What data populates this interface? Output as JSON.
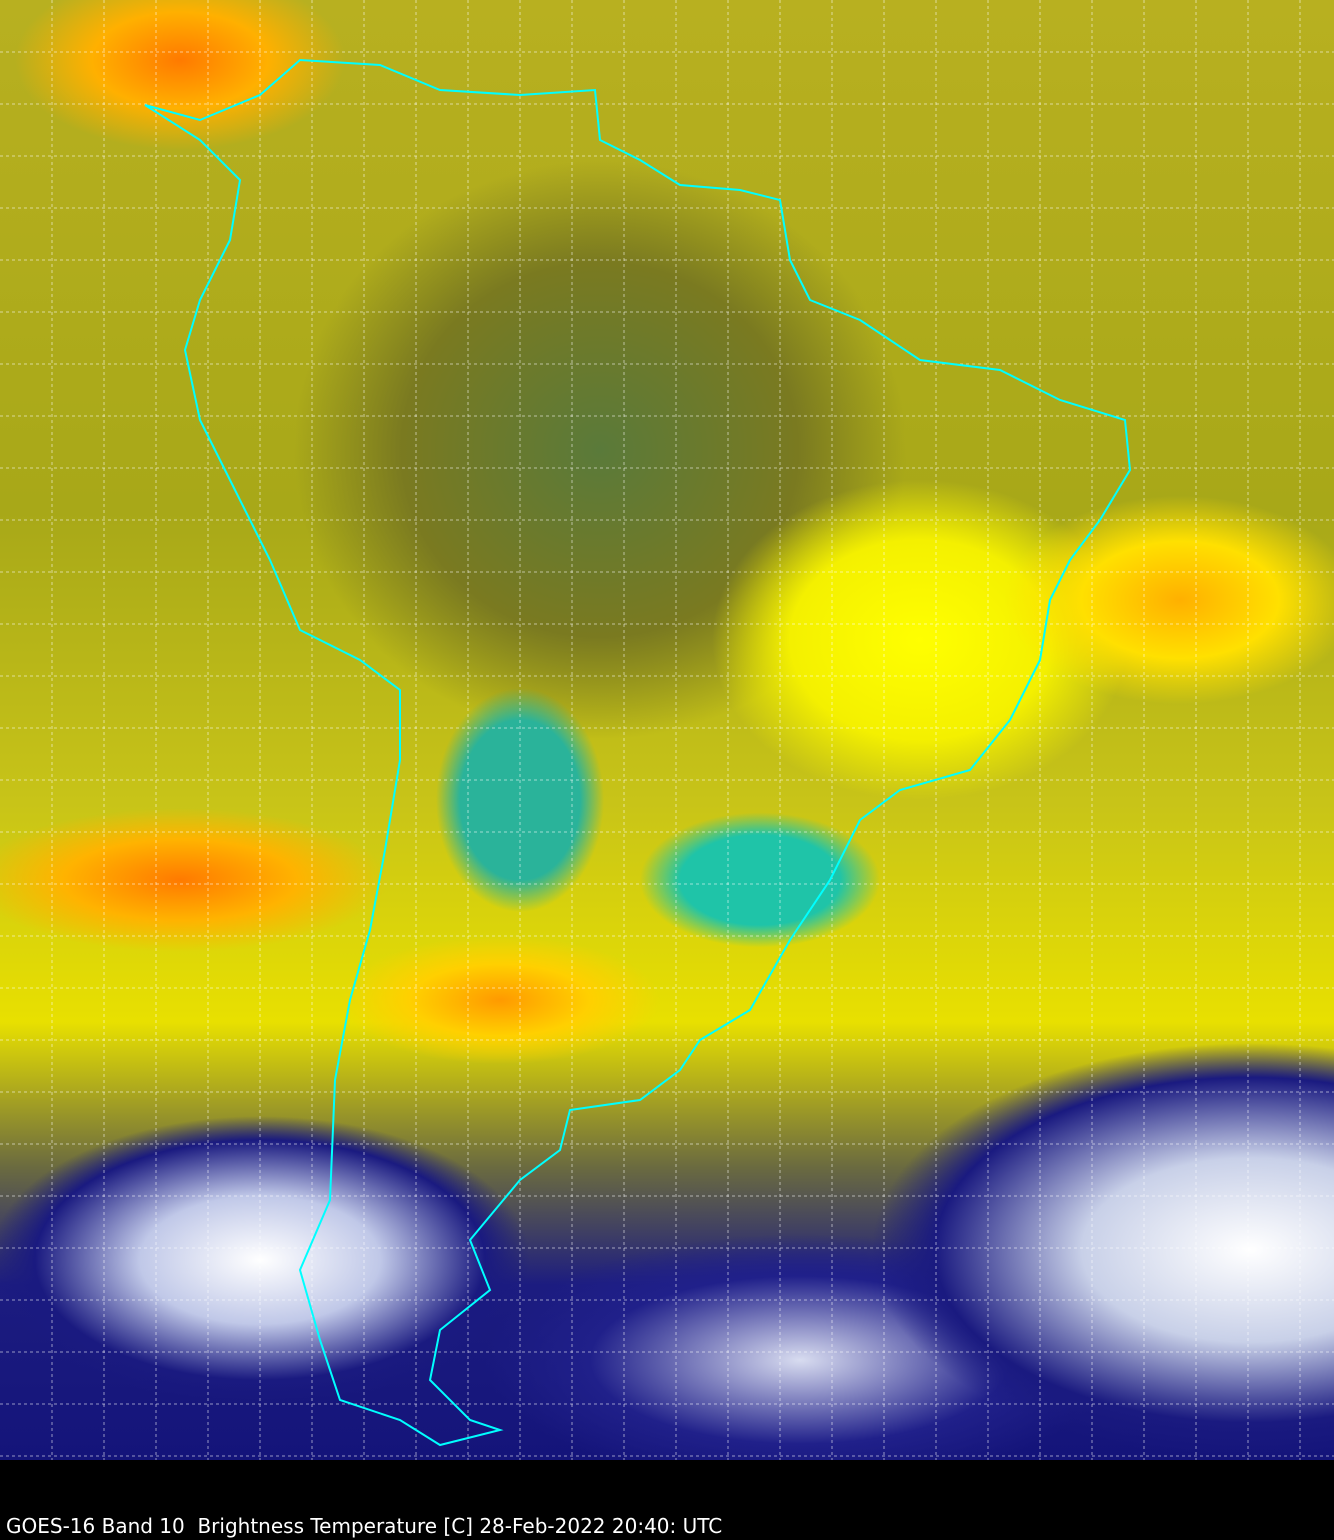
{
  "caption": "GOES-16 Band 10  Brightness Temperature [C] 28-Feb-2022 20:40: UTC",
  "colors": {
    "coastline": "#00ffff",
    "grid": "#ffffff",
    "background": "#000000"
  }
}
